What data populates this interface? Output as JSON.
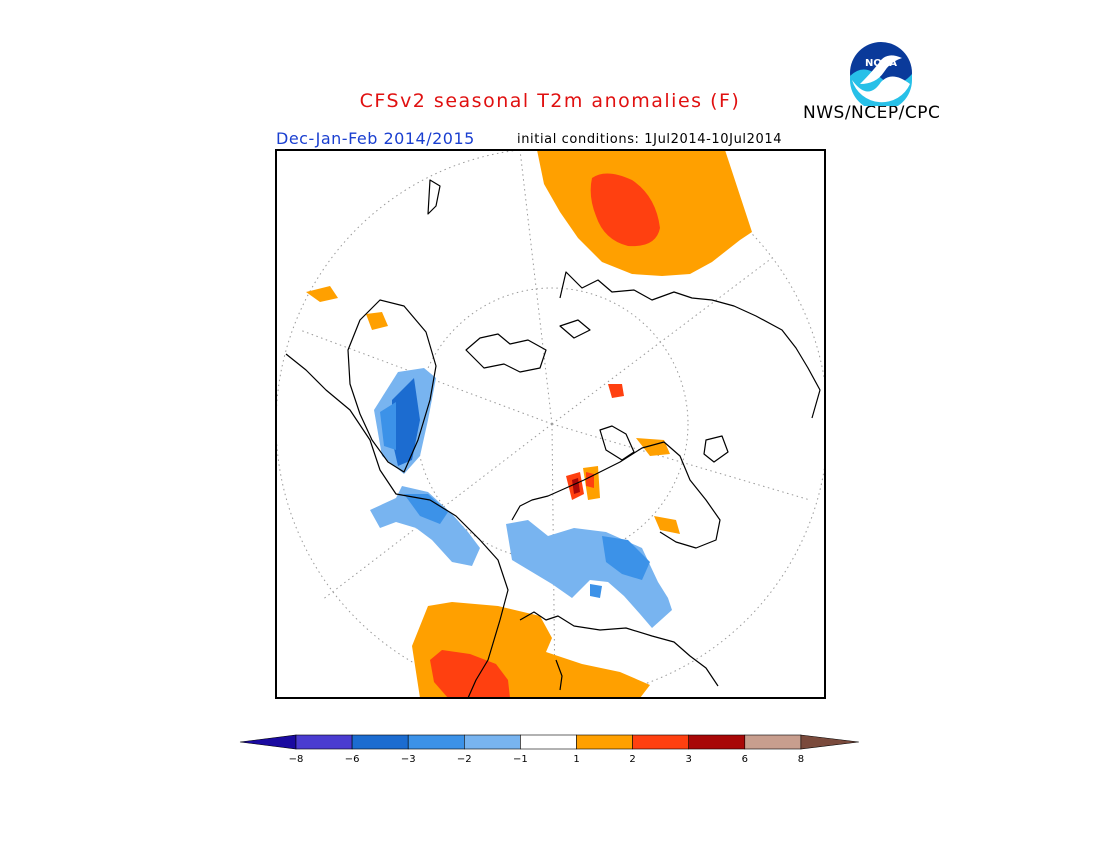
{
  "header": {
    "title": "CFSv2 seasonal T2m anomalies (F)",
    "period": "Dec-Jan-Feb 2014/2015",
    "initial_conditions": "initial conditions: 1Jul2014-10Jul2014",
    "agency": "NWS/NCEP/CPC",
    "logo_text": "NOAA"
  },
  "legend": {
    "unit": "F",
    "ticks": [
      "-8",
      "-6",
      "-3",
      "-2",
      "-1",
      "1",
      "2",
      "3",
      "6",
      "8"
    ],
    "colors": [
      "#1a0aa0",
      "#4a3cd0",
      "#1c6cd0",
      "#3c92e8",
      "#78b4f0",
      "#ffffff",
      "#ffa000",
      "#ff4010",
      "#a80808",
      "#c89e8e",
      "#7a4a3c"
    ]
  },
  "map": {
    "projection": "north-polar-stereographic",
    "colors": {
      "cool": "#78b4f0",
      "cool_strong": "#3c92e8",
      "cool_stronger": "#1c6cd0",
      "warm": "#ffa000",
      "warm_strong": "#ff4010",
      "warm_stronger": "#a80808",
      "coast": "#000000",
      "grid": "#999999"
    }
  }
}
